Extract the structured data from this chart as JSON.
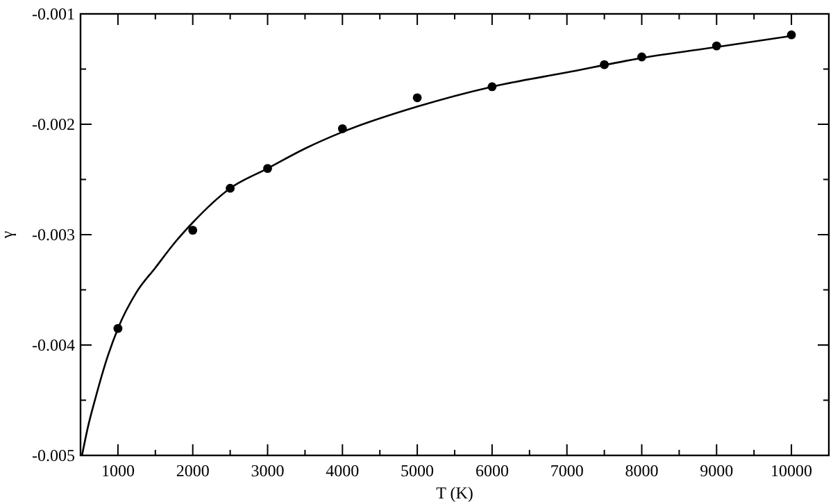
{
  "chart_data": {
    "type": "scatter",
    "xlabel": "T (K)",
    "ylabel": "γ",
    "xlim": [
      500,
      10500
    ],
    "ylim": [
      -0.005,
      -0.001
    ],
    "xticks": [
      {
        "value": 500,
        "label": null
      },
      1000,
      {
        "value": 1500,
        "label": null
      },
      2000,
      {
        "value": 2500,
        "label": null
      },
      3000,
      {
        "value": 3500,
        "label": null
      },
      4000,
      {
        "value": 4500,
        "label": null
      },
      5000,
      {
        "value": 5500,
        "label": null
      },
      6000,
      {
        "value": 6500,
        "label": null
      },
      7000,
      {
        "value": 7500,
        "label": null
      },
      8000,
      {
        "value": 8500,
        "label": null
      },
      9000,
      {
        "value": 9500,
        "label": null
      },
      10000
    ],
    "yticks": [
      -0.005,
      {
        "value": -0.0045,
        "label": null
      },
      -0.004,
      {
        "value": -0.0035,
        "label": null
      },
      -0.003,
      {
        "value": -0.0025,
        "label": null
      },
      -0.002,
      {
        "value": -0.0015,
        "label": null
      },
      -0.001
    ],
    "grid": false,
    "series": [
      {
        "color": "#000000",
        "marker": "circle",
        "x": [
          1000,
          2000,
          2500,
          3000,
          4000,
          5000,
          6000,
          7500,
          8000,
          9000,
          10000
        ],
        "values": [
          -0.00385,
          -0.00296,
          -0.00258,
          -0.0024,
          -0.00204,
          -0.00176,
          -0.00166,
          -0.00146,
          -0.00139,
          -0.00129,
          -0.00119
        ]
      },
      {
        "type": "line",
        "color": "#000000",
        "marker": "none",
        "line_style": "solid",
        "x": [
          520,
          600,
          700,
          850,
          1000,
          1250,
          1500,
          1750,
          2000,
          2500,
          3000,
          3500,
          4000,
          5000,
          6000,
          7000,
          8000,
          9000,
          10000
        ],
        "values": [
          -0.005,
          -0.00474,
          -0.00448,
          -0.00413,
          -0.00385,
          -0.00352,
          -0.0033,
          -0.00308,
          -0.00289,
          -0.00258,
          -0.0024,
          -0.00222,
          -0.00207,
          -0.00184,
          -0.00166,
          -0.00153,
          -0.0014,
          -0.0013,
          -0.0012
        ]
      }
    ]
  }
}
